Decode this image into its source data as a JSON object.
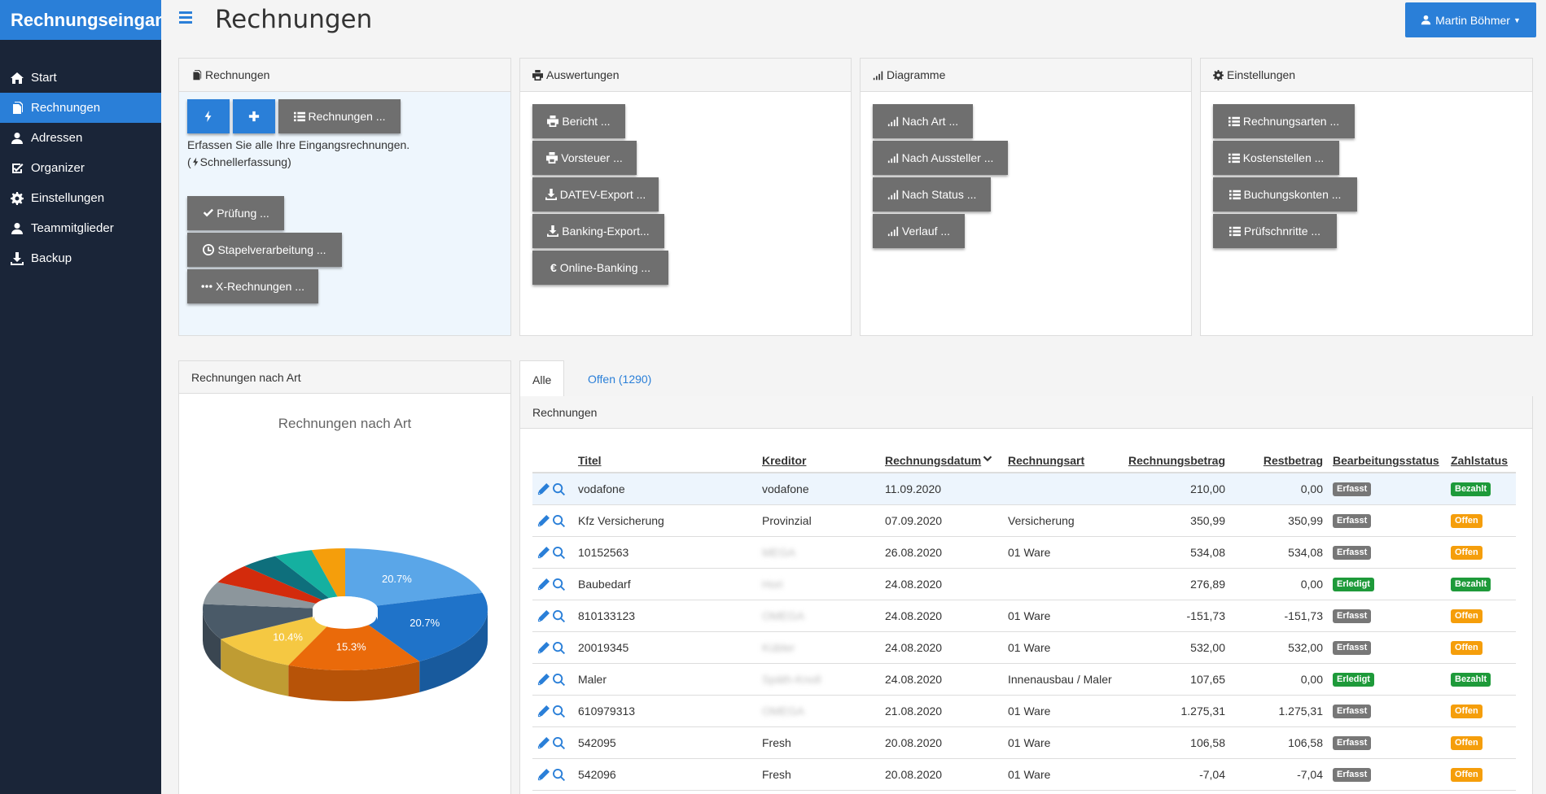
{
  "app": {
    "brand": "Rechnungseingang",
    "page_title": "Rechnungen",
    "user": "Martin Böhmer"
  },
  "sidebar": {
    "items": [
      {
        "label": "Start",
        "icon": "home-icon"
      },
      {
        "label": "Rechnungen",
        "icon": "files-icon",
        "active": true
      },
      {
        "label": "Adressen",
        "icon": "user-icon"
      },
      {
        "label": "Organizer",
        "icon": "check-square-icon"
      },
      {
        "label": "Einstellungen",
        "icon": "gear-icon"
      },
      {
        "label": "Teammitglieder",
        "icon": "user-icon"
      },
      {
        "label": "Backup",
        "icon": "download-icon"
      }
    ]
  },
  "panels": {
    "rechnungen": {
      "title": "Rechnungen",
      "list_button": "Rechnungen ...",
      "hint_line1": "Erfassen Sie alle Ihre Eingangsrechnungen.",
      "hint_line2": "Schnellerfassung)",
      "hint_paren": "(",
      "buttons": [
        "Prüfung ...",
        "Stapelverarbeitung ...",
        "X-Rechnungen ..."
      ]
    },
    "auswertungen": {
      "title": "Auswertungen",
      "buttons": [
        "Bericht ...",
        "Vorsteuer ...",
        "DATEV-Export ...",
        "Banking-Export...",
        "Online-Banking ..."
      ]
    },
    "diagramme": {
      "title": "Diagramme",
      "buttons": [
        "Nach Art ...",
        "Nach Aussteller ...",
        "Nach Status ...",
        "Verlauf ..."
      ]
    },
    "einstellungen": {
      "title": "Einstellungen",
      "buttons": [
        "Rechnungsarten ...",
        "Kostenstellen ...",
        "Buchungskonten ...",
        "Prüfschnritte ..."
      ]
    }
  },
  "chart_panel": {
    "title": "Rechnungen nach Art"
  },
  "chart_data": {
    "type": "pie",
    "title": "Rechnungen nach Art",
    "slices": [
      {
        "label": "20.7%",
        "value": 20.7,
        "color": "#5aa6e8"
      },
      {
        "label": "20.7%",
        "value": 20.7,
        "color": "#1f73c9"
      },
      {
        "label": "15.3%",
        "value": 15.3,
        "color": "#ea6a0a"
      },
      {
        "label": "10.4%",
        "value": 10.4,
        "color": "#f5c842"
      },
      {
        "label": "",
        "value": 9.5,
        "color": "#4a5a68"
      },
      {
        "label": "",
        "value": 6.0,
        "color": "#8c969c"
      },
      {
        "label": "",
        "value": 5.2,
        "color": "#d32b0c"
      },
      {
        "label": "",
        "value": 4.3,
        "color": "#0e6f7c"
      },
      {
        "label": "",
        "value": 4.4,
        "color": "#15b0a0"
      },
      {
        "label": "",
        "value": 3.8,
        "color": "#f59e0b"
      }
    ]
  },
  "tabs": [
    {
      "label": "Alle",
      "active": true
    },
    {
      "label": "Offen (1290)"
    }
  ],
  "table": {
    "title": "Rechnungen",
    "columns": [
      "Titel",
      "Kreditor",
      "Rechnungsdatum",
      "Rechnungsart",
      "Rechnungsbetrag",
      "Restbetrag",
      "Bearbeitungsstatus",
      "Zahlstatus"
    ],
    "rows": [
      {
        "titel": "vodafone",
        "kreditor": "vodafone",
        "datum": "11.09.2020",
        "art": "",
        "betrag": "210,00",
        "rest": "0,00",
        "bstatus": "Erfasst",
        "zstatus": "Bezahlt",
        "blur": false
      },
      {
        "titel": "Kfz Versicherung",
        "kreditor": "Provinzial",
        "datum": "07.09.2020",
        "art": "Versicherung",
        "betrag": "350,99",
        "rest": "350,99",
        "bstatus": "Erfasst",
        "zstatus": "Offen",
        "blur": false
      },
      {
        "titel": "10152563",
        "kreditor": "MEGA",
        "datum": "26.08.2020",
        "art": "01 Ware",
        "betrag": "534,08",
        "rest": "534,08",
        "bstatus": "Erfasst",
        "zstatus": "Offen",
        "blur": true
      },
      {
        "titel": "Baubedarf",
        "kreditor": "Hori",
        "datum": "24.08.2020",
        "art": "",
        "betrag": "276,89",
        "rest": "0,00",
        "bstatus": "Erledigt",
        "zstatus": "Bezahlt",
        "blur": true
      },
      {
        "titel": "810133123",
        "kreditor": "OMEGA",
        "datum": "24.08.2020",
        "art": "01 Ware",
        "betrag": "-151,73",
        "rest": "-151,73",
        "bstatus": "Erfasst",
        "zstatus": "Offen",
        "blur": true
      },
      {
        "titel": "20019345",
        "kreditor": "Kübler",
        "datum": "24.08.2020",
        "art": "01 Ware",
        "betrag": "532,00",
        "rest": "532,00",
        "bstatus": "Erfasst",
        "zstatus": "Offen",
        "blur": true
      },
      {
        "titel": "Maler",
        "kreditor": "Späth-Knoll",
        "datum": "24.08.2020",
        "art": "Innenausbau / Maler",
        "betrag": "107,65",
        "rest": "0,00",
        "bstatus": "Erledigt",
        "zstatus": "Bezahlt",
        "blur": true
      },
      {
        "titel": "610979313",
        "kreditor": "OMEGA",
        "datum": "21.08.2020",
        "art": "01 Ware",
        "betrag": "1.275,31",
        "rest": "1.275,31",
        "bstatus": "Erfasst",
        "zstatus": "Offen",
        "blur": true
      },
      {
        "titel": "542095",
        "kreditor": "Fresh",
        "datum": "20.08.2020",
        "art": "01 Ware",
        "betrag": "106,58",
        "rest": "106,58",
        "bstatus": "Erfasst",
        "zstatus": "Offen",
        "blur": false
      },
      {
        "titel": "542096",
        "kreditor": "Fresh",
        "datum": "20.08.2020",
        "art": "01 Ware",
        "betrag": "-7,04",
        "rest": "-7,04",
        "bstatus": "Erfasst",
        "zstatus": "Offen",
        "blur": false
      }
    ]
  },
  "colors": {
    "accent": "#2a7fd8",
    "sidebar": "#1a2538",
    "button_gray": "#6f6f6f",
    "badge_erfasst": "#777777",
    "badge_erledigt": "#1e9a3a",
    "badge_bezahlt": "#1e9a3a",
    "badge_offen": "#f59e0b"
  }
}
